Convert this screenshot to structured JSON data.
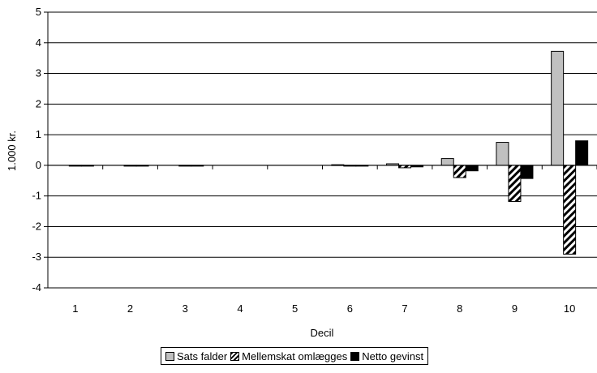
{
  "chart_data": {
    "type": "bar",
    "categories": [
      "1",
      "2",
      "3",
      "4",
      "5",
      "6",
      "7",
      "8",
      "9",
      "10"
    ],
    "series": [
      {
        "name": "Sats falder",
        "color": "#c0c0c0",
        "pattern": "solid",
        "values": [
          0,
          0,
          0,
          0,
          0,
          0.02,
          0.05,
          0.22,
          0.75,
          3.72
        ]
      },
      {
        "name": "Mellemskat omlægges",
        "color": "#000000",
        "pattern": "diagonal-hatch",
        "values": [
          -0.01,
          -0.01,
          -0.02,
          0,
          0,
          -0.02,
          -0.08,
          -0.4,
          -1.18,
          -2.9
        ]
      },
      {
        "name": "Netto gevinst",
        "color": "#000000",
        "pattern": "solid",
        "values": [
          -0.01,
          -0.01,
          -0.02,
          0,
          0,
          -0.01,
          -0.05,
          -0.18,
          -0.43,
          0.8
        ]
      }
    ],
    "xlabel": "Decil",
    "ylabel": "1.000 kr.",
    "ylim": [
      -4,
      5
    ],
    "yticks": [
      -4,
      -3,
      -2,
      -1,
      0,
      1,
      2,
      3,
      4,
      5
    ],
    "grid": true,
    "legend_position": "bottom"
  }
}
